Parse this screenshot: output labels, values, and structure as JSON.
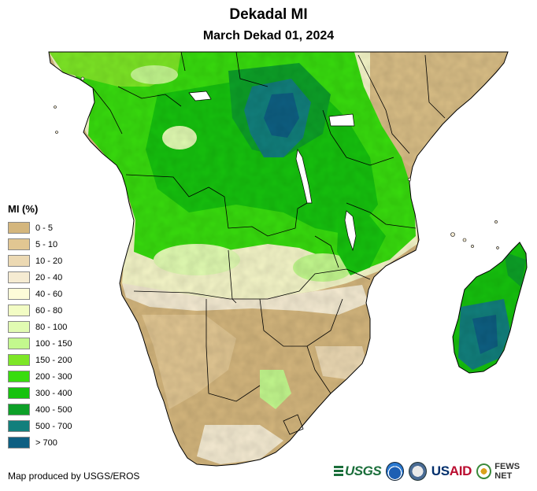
{
  "title": "Dekadal MI",
  "subtitle": "March Dekad 01, 2024",
  "legend": {
    "title": "MI (%)",
    "items": [
      {
        "label": "0 - 5",
        "color": "#d4b67d"
      },
      {
        "label": "5 - 10",
        "color": "#e1c692"
      },
      {
        "label": "10 - 20",
        "color": "#ecd9b3"
      },
      {
        "label": "20 - 40",
        "color": "#f5ebd2"
      },
      {
        "label": "40 - 60",
        "color": "#fdfbd8"
      },
      {
        "label": "60 - 80",
        "color": "#f2fcc4"
      },
      {
        "label": "80 - 100",
        "color": "#e1fbb2"
      },
      {
        "label": "100 - 150",
        "color": "#c3f88e"
      },
      {
        "label": "150 - 200",
        "color": "#7de626"
      },
      {
        "label": "200 - 300",
        "color": "#38dc0e"
      },
      {
        "label": "300 - 400",
        "color": "#16c20e"
      },
      {
        "label": "400 - 500",
        "color": "#0da028"
      },
      {
        "label": "500 - 700",
        "color": "#127f7c"
      },
      {
        "label": "> 700",
        "color": "#0e5f82"
      }
    ]
  },
  "credit": "Map produced by USGS/EROS",
  "logos": {
    "usgs": "USGS",
    "usaid_a": "US",
    "usaid_b": "AID",
    "fews": "FEWS NET"
  },
  "palette": {
    "water": "#ffffff",
    "border": "#000000"
  }
}
